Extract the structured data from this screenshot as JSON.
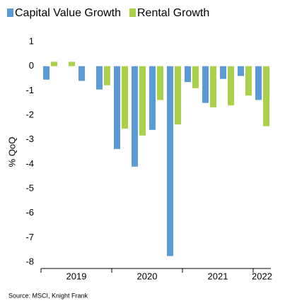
{
  "chart_data": {
    "type": "bar",
    "ylabel": "% QoQ",
    "source": "Source: MSCI, Knight Frank",
    "categories": [
      "2019",
      null,
      null,
      null,
      "2020",
      null,
      null,
      null,
      "2021",
      null,
      null,
      null,
      "2022"
    ],
    "series": [
      {
        "name": "Capital Value Growth",
        "color": "#5b9bd5",
        "values": [
          -0.55,
          0,
          -0.6,
          -0.95,
          -3.38,
          -4.1,
          -2.6,
          -7.75,
          -0.65,
          -1.5,
          -0.52,
          -0.4,
          -1.38
        ]
      },
      {
        "name": "Rental Growth",
        "color": "#a9d24a",
        "values": [
          0.18,
          0.18,
          0,
          -0.78,
          -2.55,
          -2.83,
          -1.38,
          -2.38,
          -0.9,
          -1.68,
          -1.6,
          -1.2,
          -2.45
        ]
      }
    ],
    "ylim": [
      1.25,
      -8.25
    ],
    "yticks": [
      1,
      0,
      -1,
      -2,
      -3,
      -4,
      -5,
      -6,
      -7,
      -8
    ],
    "grid": false,
    "legend": "top"
  }
}
